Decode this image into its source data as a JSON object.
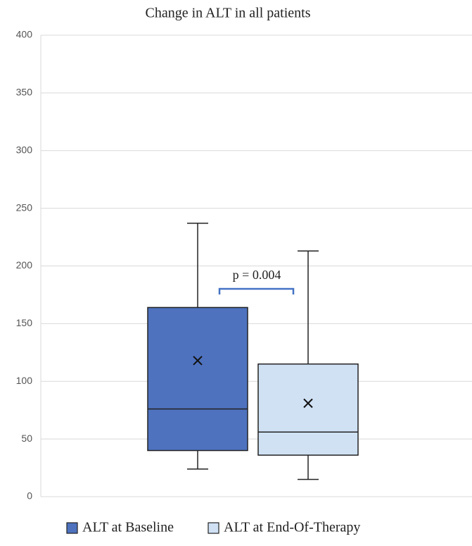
{
  "chart_data": {
    "type": "box",
    "title": "Change in ALT in all patients",
    "ylim": [
      0,
      400
    ],
    "yticks": [
      0,
      50,
      100,
      150,
      200,
      250,
      300,
      350,
      400
    ],
    "grid": true,
    "annotation": "p = 0.004",
    "series": [
      {
        "name": "ALT at Baseline",
        "color": "#4e72be",
        "min": 24,
        "q1": 40,
        "median": 76,
        "q3": 164,
        "max": 237,
        "mean": 118
      },
      {
        "name": "ALT at End-Of-Therapy",
        "color": "#d0e1f4",
        "min": 15,
        "q1": 36,
        "median": 56,
        "q3": 115,
        "max": 213,
        "mean": 81
      }
    ]
  }
}
